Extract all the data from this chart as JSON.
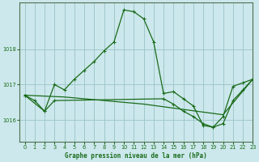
{
  "title": "Graphe pression niveau de la mer (hPa)",
  "bg_color": "#cce8ec",
  "grid_color": "#a0c8cc",
  "line_color": "#1a6b1a",
  "xlim": [
    -0.5,
    23
  ],
  "ylim": [
    1015.4,
    1019.3
  ],
  "yticks": [
    1016,
    1017,
    1018
  ],
  "xticks": [
    0,
    1,
    2,
    3,
    4,
    5,
    6,
    7,
    8,
    9,
    10,
    11,
    12,
    13,
    14,
    15,
    16,
    17,
    18,
    19,
    20,
    21,
    22,
    23
  ],
  "series1_x": [
    0,
    1,
    2,
    3,
    4,
    5,
    6,
    7,
    8,
    9,
    10,
    11,
    12,
    13,
    14,
    15,
    16,
    17,
    18,
    19,
    20,
    21,
    22,
    23
  ],
  "series1_y": [
    1016.7,
    1016.55,
    1016.25,
    1017.0,
    1016.85,
    1017.15,
    1017.4,
    1017.65,
    1017.95,
    1018.2,
    1019.1,
    1019.05,
    1018.85,
    1018.2,
    1016.75,
    1016.8,
    1016.6,
    1016.4,
    1015.85,
    1015.8,
    1016.1,
    1016.95,
    1017.05,
    1017.15
  ],
  "series2_x": [
    0,
    2,
    3,
    14,
    15,
    16,
    17,
    18,
    19,
    20,
    21,
    22,
    23
  ],
  "series2_y": [
    1016.7,
    1016.25,
    1016.55,
    1016.6,
    1016.45,
    1016.25,
    1016.1,
    1015.9,
    1015.8,
    1015.9,
    1016.55,
    1016.85,
    1017.15
  ],
  "series3_x": [
    0,
    4,
    8,
    12,
    16,
    20,
    23
  ],
  "series3_y": [
    1016.7,
    1016.65,
    1016.55,
    1016.45,
    1016.3,
    1016.15,
    1017.15
  ]
}
